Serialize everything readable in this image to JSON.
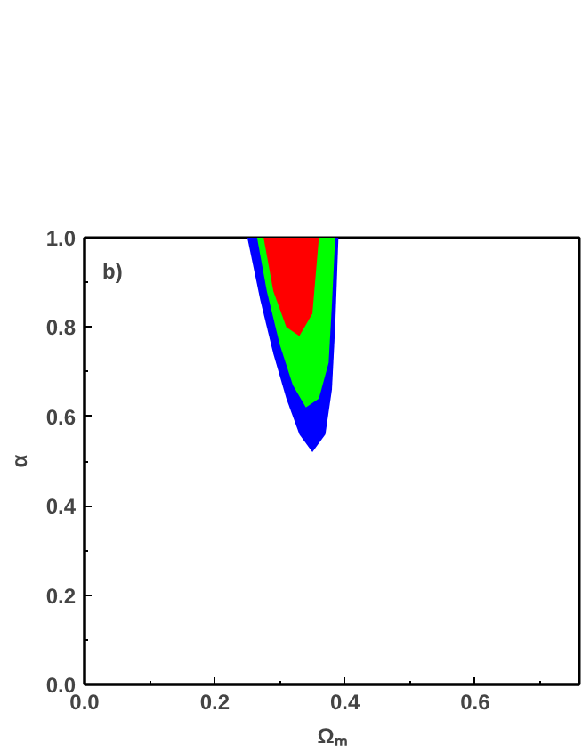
{
  "chart_data": {
    "type": "area",
    "xlabel": "Ωₘ",
    "ylabel": "α",
    "annotations": [
      "b)"
    ],
    "xlim": [
      0.0,
      0.76
    ],
    "ylim": [
      0.0,
      1.0
    ],
    "xticks": [
      {
        "value": 0,
        "label": "0.0"
      },
      0.2,
      0.4,
      0.6
    ],
    "yticks": [
      {
        "value": 0,
        "label": "0.0"
      },
      0.2,
      0.4,
      0.6,
      0.8,
      {
        "value": 1,
        "label": "1.0"
      }
    ],
    "grid": false,
    "series": [
      {
        "color": "#0000ff",
        "x": [
          0.25,
          0.27,
          0.29,
          0.31,
          0.33,
          0.35,
          0.37,
          0.38,
          0.385,
          0.39
        ],
        "values": [
          1.0,
          0.86,
          0.74,
          0.64,
          0.56,
          0.52,
          0.56,
          0.66,
          0.8,
          1.0
        ]
      },
      {
        "color": "#00ff00",
        "x": [
          0.265,
          0.28,
          0.3,
          0.32,
          0.34,
          0.36,
          0.375,
          0.38,
          0.385
        ],
        "values": [
          1.0,
          0.88,
          0.76,
          0.67,
          0.62,
          0.64,
          0.72,
          0.85,
          1.0
        ]
      },
      {
        "color": "#ff0000",
        "x": [
          0.275,
          0.29,
          0.31,
          0.33,
          0.35,
          0.36
        ],
        "values": [
          1.0,
          0.88,
          0.8,
          0.78,
          0.83,
          1.0
        ]
      }
    ]
  }
}
